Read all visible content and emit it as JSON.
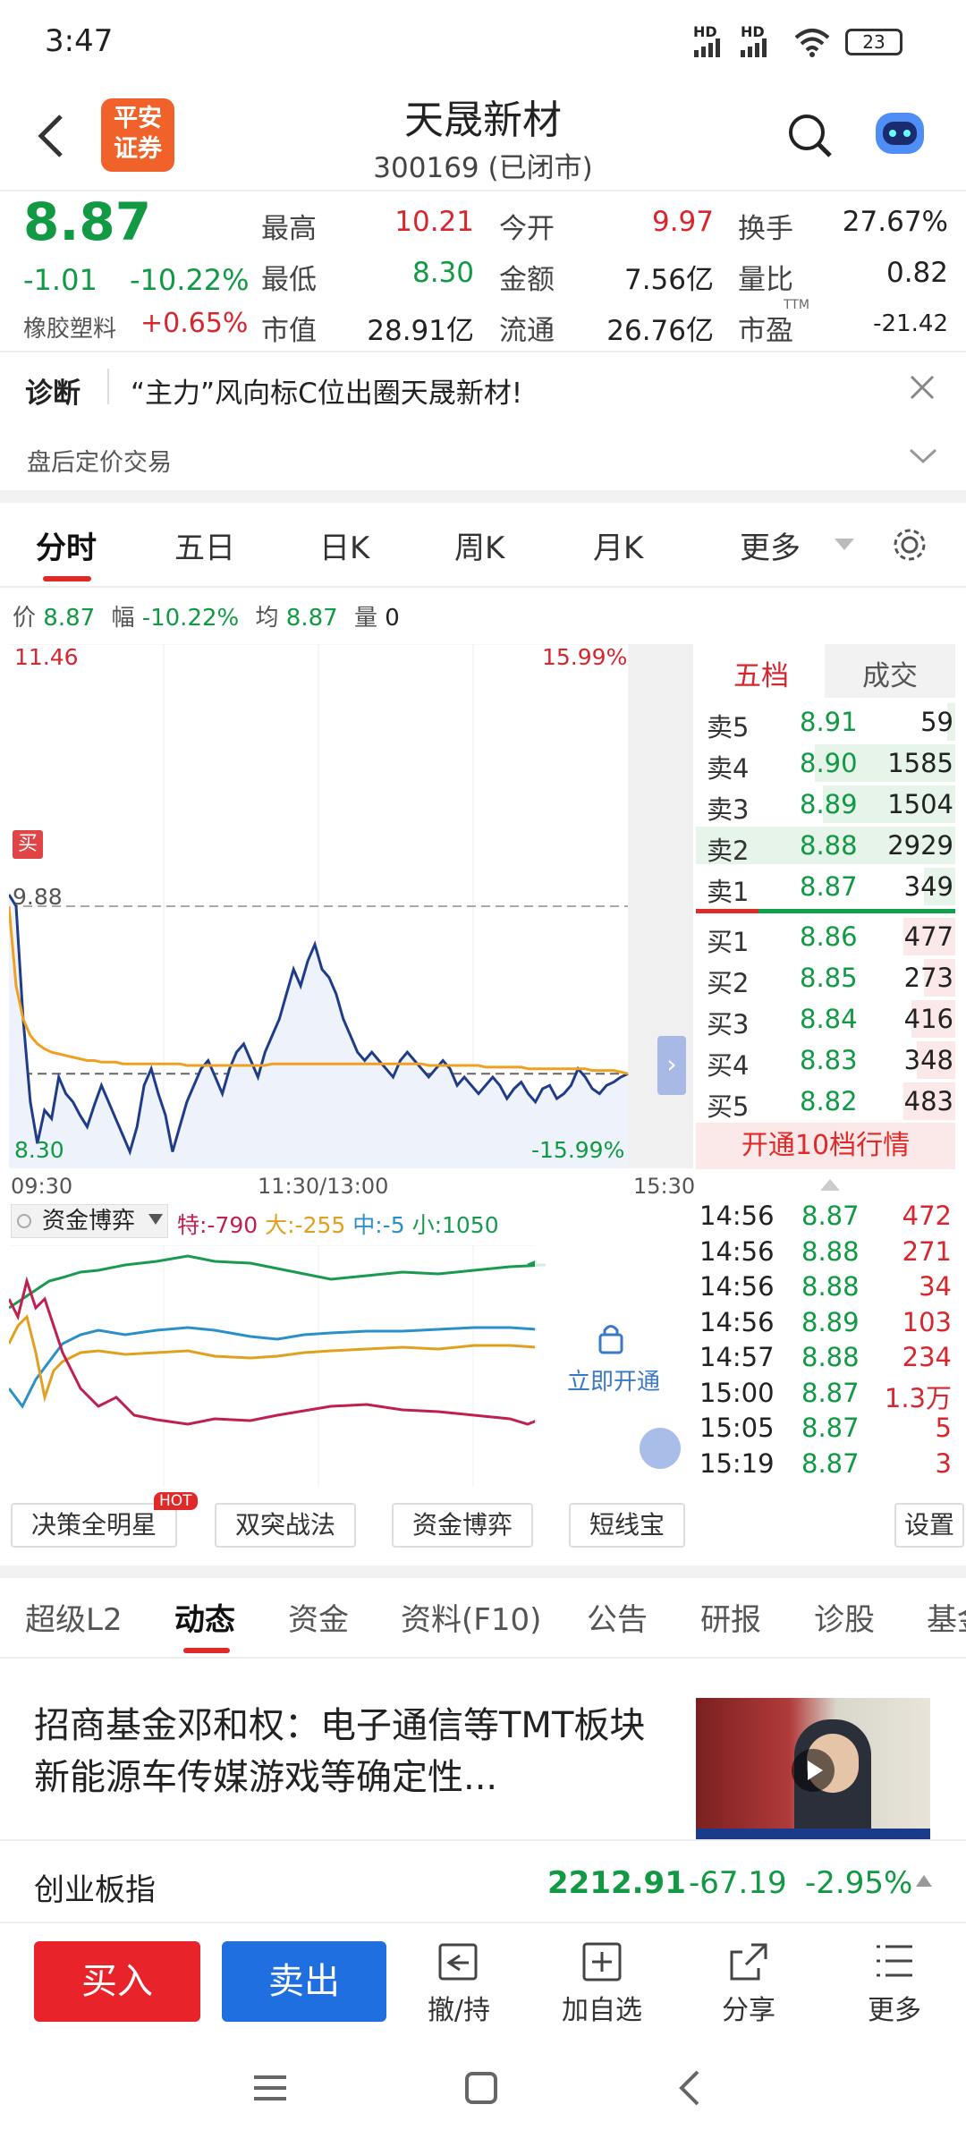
{
  "status": {
    "time": "3:47",
    "battery": "23",
    "net1": "HD",
    "net2": "HD"
  },
  "header": {
    "logo_line1": "平安",
    "logo_line2": "证券",
    "title": "天晟新材",
    "subtitle": "300169 (已闭市)"
  },
  "quote": {
    "price": "8.87",
    "change": "-1.01",
    "change_pct": "-10.22%",
    "sector": "橡胶塑料",
    "sector_pct": "+0.65%",
    "high_label": "最高",
    "high": "10.21",
    "open_label": "今开",
    "open": "9.97",
    "turnover_label": "换手",
    "turnover": "27.67%",
    "low_label": "最低",
    "low": "8.30",
    "amount_label": "金额",
    "amount": "7.56亿",
    "vol_ratio_label": "量比",
    "vol_ratio": "0.82",
    "mcap_label": "市值",
    "mcap": "28.91亿",
    "float_label": "流通",
    "float": "26.76亿",
    "pe_label": "市盈",
    "pe_sup": "TTM",
    "pe": "-21.42"
  },
  "diag": {
    "label": "诊断",
    "text": "“主力”风向标C位出圈天晟新材!",
    "after_hours": "盘后定价交易"
  },
  "tabs": [
    "分时",
    "五日",
    "日K",
    "周K",
    "月K",
    "更多"
  ],
  "info_bar": {
    "price_label": "价",
    "price": "8.87",
    "range_label": "幅",
    "range": "-10.22%",
    "avg_label": "均",
    "avg": "8.87",
    "vol_label": "量",
    "vol": "0"
  },
  "chart_labels": {
    "ymax": "11.46",
    "ymax_pct": "15.99%",
    "ymin": "8.30",
    "ymin_pct": "-15.99%",
    "ref": "9.88",
    "buy_marker": "买",
    "t0": "09:30",
    "t1": "11:30/13:00",
    "t2": "15:30"
  },
  "chart_data": {
    "type": "line",
    "ylim": [
      8.3,
      11.46
    ],
    "prev_close": 9.88,
    "series": [
      {
        "color": "#1f3c88",
        "values": [
          9.95,
          9.88,
          9.2,
          8.7,
          8.45,
          8.65,
          8.6,
          8.85,
          8.75,
          8.7,
          8.62,
          8.55,
          8.68,
          8.8,
          8.7,
          8.6,
          8.5,
          8.4,
          8.55,
          8.8,
          8.9,
          8.75,
          8.62,
          8.4,
          8.55,
          8.7,
          8.8,
          8.9,
          8.95,
          8.85,
          8.75,
          8.9,
          9.0,
          9.05,
          8.95,
          8.85,
          9.0,
          9.1,
          9.2,
          9.35,
          9.5,
          9.4,
          9.55,
          9.65,
          9.5,
          9.45,
          9.35,
          9.2,
          9.1,
          9.0,
          8.95,
          9.0,
          8.95,
          8.9,
          8.85,
          8.95,
          9.0,
          8.95,
          8.9,
          8.85,
          8.9,
          8.95,
          8.9,
          8.8,
          8.85,
          8.8,
          8.75,
          8.8,
          8.85,
          8.8,
          8.72,
          8.78,
          8.82,
          8.75,
          8.7,
          8.78,
          8.8,
          8.72,
          8.75,
          8.8,
          8.9,
          8.85,
          8.78,
          8.75,
          8.8,
          8.82,
          8.85,
          8.87
        ]
      },
      {
        "color": "#f0a020",
        "values": [
          9.88,
          9.4,
          9.2,
          9.1,
          9.05,
          9.02,
          9.0,
          8.99,
          8.98,
          8.97,
          8.96,
          8.95,
          8.95,
          8.94,
          8.94,
          8.94,
          8.93,
          8.93,
          8.93,
          8.93,
          8.93,
          8.93,
          8.93,
          8.93,
          8.93,
          8.92,
          8.92,
          8.92,
          8.92,
          8.92,
          8.92,
          8.92,
          8.92,
          8.92,
          8.92,
          8.92,
          8.92,
          8.93,
          8.93,
          8.93,
          8.93,
          8.93,
          8.93,
          8.93,
          8.93,
          8.93,
          8.93,
          8.93,
          8.93,
          8.93,
          8.93,
          8.93,
          8.93,
          8.93,
          8.93,
          8.93,
          8.93,
          8.93,
          8.93,
          8.92,
          8.92,
          8.92,
          8.92,
          8.92,
          8.92,
          8.92,
          8.92,
          8.91,
          8.91,
          8.91,
          8.91,
          8.91,
          8.91,
          8.9,
          8.9,
          8.9,
          8.9,
          8.9,
          8.9,
          8.9,
          8.9,
          8.9,
          8.89,
          8.89,
          8.89,
          8.89,
          8.88,
          8.87
        ]
      }
    ]
  },
  "order_book": {
    "tab_a": "五档",
    "tab_b": "成交",
    "asks": [
      {
        "l": "卖5",
        "p": "8.91",
        "v": "59",
        "w": 0.03
      },
      {
        "l": "卖4",
        "p": "8.90",
        "v": "1585",
        "w": 0.54
      },
      {
        "l": "卖3",
        "p": "8.89",
        "v": "1504",
        "w": 0.51
      },
      {
        "l": "卖2",
        "p": "8.88",
        "v": "2929",
        "w": 1.0
      },
      {
        "l": "卖1",
        "p": "8.87",
        "v": "349",
        "w": 0.12
      }
    ],
    "bids": [
      {
        "l": "买1",
        "p": "8.86",
        "v": "477",
        "w": 0.2
      },
      {
        "l": "买2",
        "p": "8.85",
        "v": "273",
        "w": 0.12
      },
      {
        "l": "买3",
        "p": "8.84",
        "v": "416",
        "w": 0.17
      },
      {
        "l": "买4",
        "p": "8.83",
        "v": "348",
        "w": 0.15
      },
      {
        "l": "买5",
        "p": "8.82",
        "v": "483",
        "w": 0.2
      }
    ],
    "open10": "开通10档行情"
  },
  "ticks": [
    {
      "t": "14:56",
      "p": "8.87",
      "v": "472"
    },
    {
      "t": "14:56",
      "p": "8.88",
      "v": "271"
    },
    {
      "t": "14:56",
      "p": "8.88",
      "v": "34"
    },
    {
      "t": "14:56",
      "p": "8.89",
      "v": "103"
    },
    {
      "t": "14:57",
      "p": "8.88",
      "v": "234"
    },
    {
      "t": "15:00",
      "p": "8.87",
      "v": "1.3万"
    },
    {
      "t": "15:05",
      "p": "8.87",
      "v": "5"
    },
    {
      "t": "15:19",
      "p": "8.87",
      "v": "3"
    }
  ],
  "fund": {
    "selector": "资金博弈",
    "te": "特:-790",
    "da": "大:-255",
    "zhong": "中:-5",
    "xiao": "小:1050",
    "unlock": "立即开通"
  },
  "chips": {
    "c1": "决策全明星",
    "hot": "HOT",
    "c2": "双突战法",
    "c3": "资金博弈",
    "c4": "短线宝",
    "settings": "设置"
  },
  "lower_tabs": [
    "超级L2",
    "动态",
    "资金",
    "资料(F10)",
    "公告",
    "研报",
    "诊股",
    "基金"
  ],
  "news": {
    "title": "招商基金邓和权：电子通信等TMT板块新能源车传媒游戏等确定性..."
  },
  "index": {
    "name": "创业板指",
    "value": "2212.91",
    "change": "-67.19",
    "pct": "-2.95%"
  },
  "actions": {
    "buy": "买入",
    "sell": "卖出",
    "cancel": "撤/持",
    "watch": "加自选",
    "share": "分享",
    "more": "更多"
  },
  "colors": {
    "red": "#d9262e",
    "green": "#119944",
    "blue": "#1f6fe0",
    "price_line": "#1f3c88",
    "avg_line": "#f0a020"
  }
}
